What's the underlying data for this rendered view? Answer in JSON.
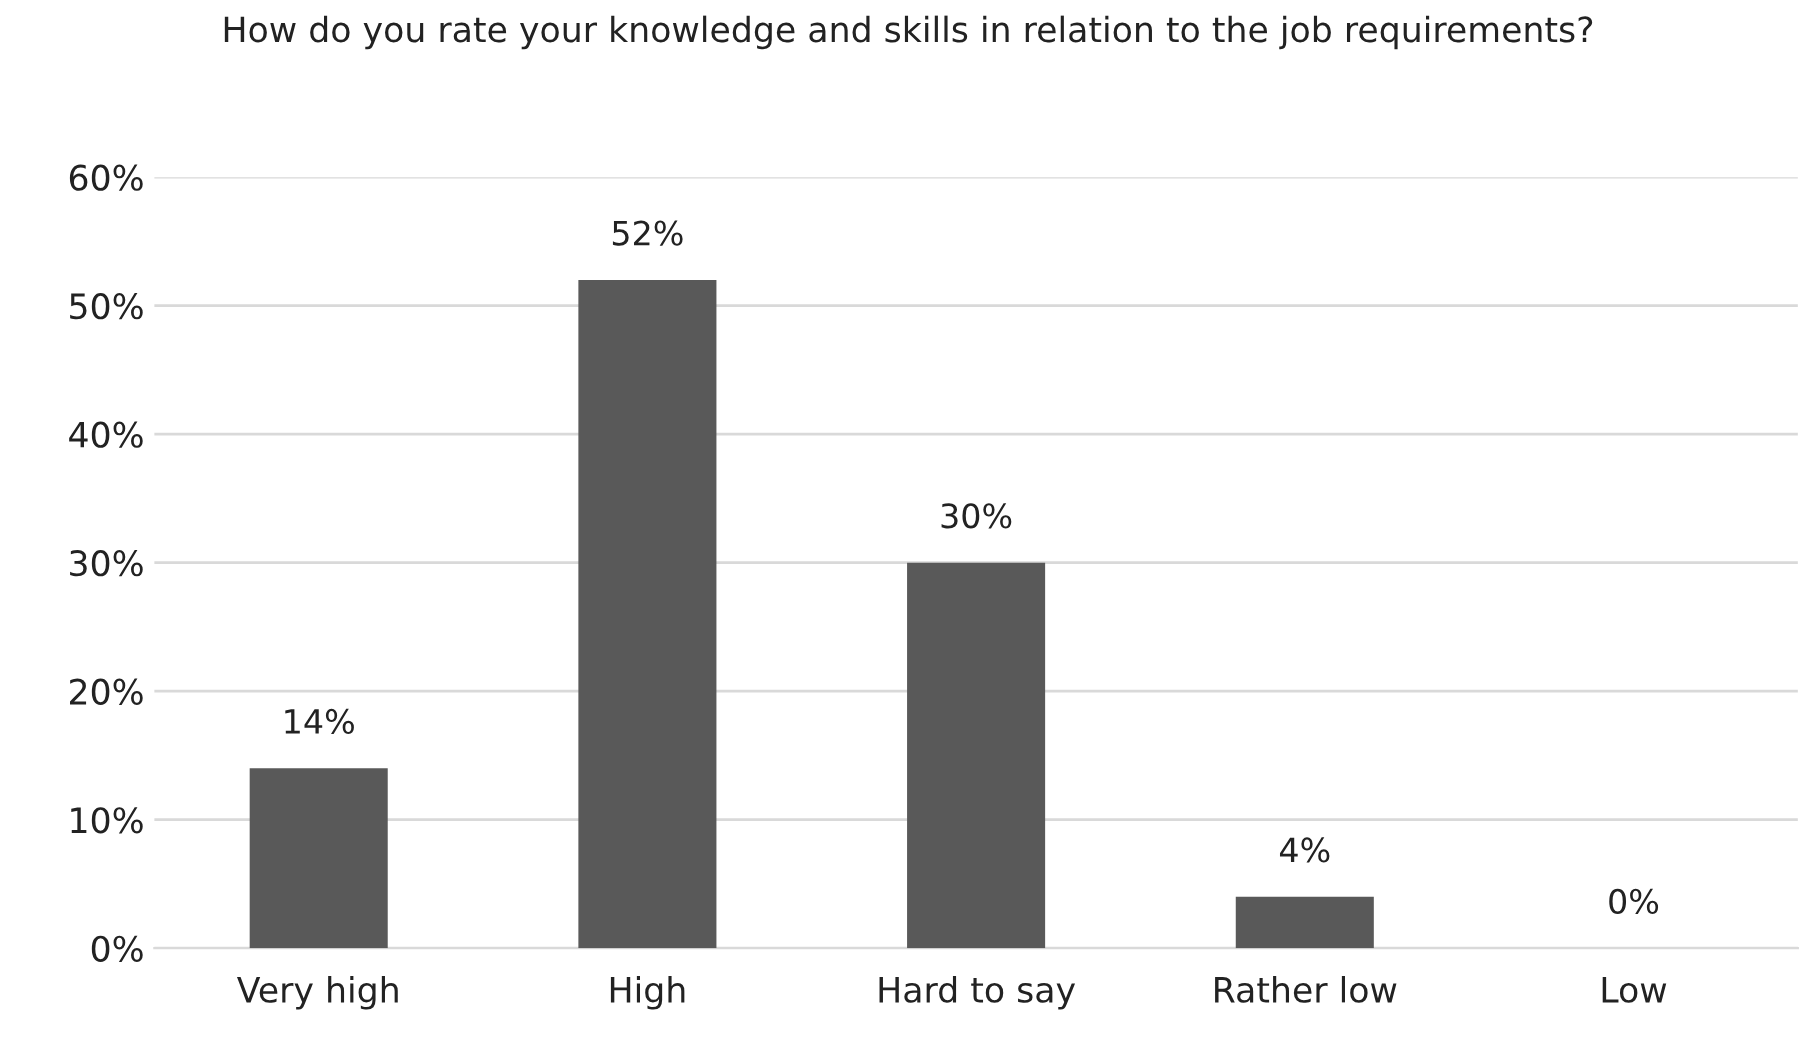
{
  "chart_data": {
    "type": "bar",
    "title": "How do you rate your knowledge and skills in relation to the job requirements?",
    "categories": [
      "Very high",
      "High",
      "Hard to say",
      "Rather low",
      "Low"
    ],
    "values": [
      14,
      52,
      30,
      4,
      0
    ],
    "value_labels": [
      "14%",
      "52%",
      "30%",
      "4%",
      "0%"
    ],
    "color": "#595959",
    "ylim": [
      0,
      60
    ],
    "yticks": [
      {
        "value": 0,
        "label": "0%"
      },
      {
        "value": 10,
        "label": "10%"
      },
      {
        "value": 20,
        "label": "20%"
      },
      {
        "value": 30,
        "label": "30%"
      },
      {
        "value": 40,
        "label": "40%"
      },
      {
        "value": 50,
        "label": "50%"
      },
      {
        "value": 60,
        "label": "60%"
      }
    ],
    "grid": "y"
  }
}
